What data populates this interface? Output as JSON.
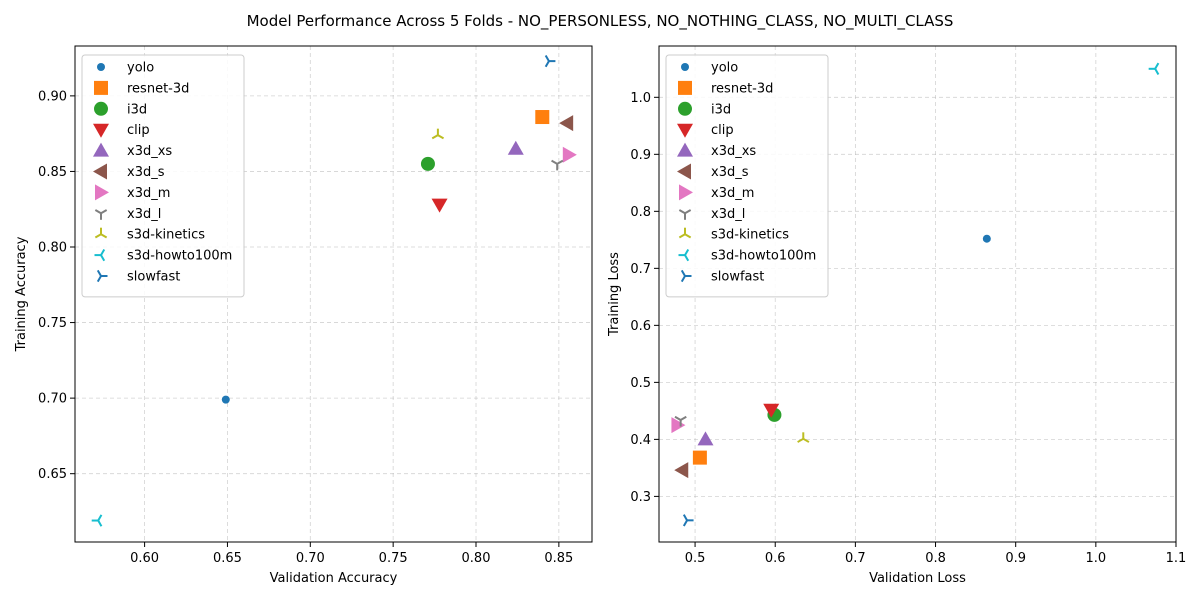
{
  "suptitle": "Model Performance Across 5 Folds - NO_PERSONLESS, NO_NOTHING_CLASS, NO_MULTI_CLASS",
  "chart_data": [
    {
      "type": "scatter",
      "title": "",
      "xlabel": "Validation Accuracy",
      "ylabel": "Training Accuracy",
      "xlim": [
        0.558,
        0.87
      ],
      "ylim": [
        0.6048,
        0.933
      ],
      "xticks": [
        0.6,
        0.65,
        0.7,
        0.75,
        0.8,
        0.85
      ],
      "xtick_labels": [
        "0.60",
        "0.65",
        "0.70",
        "0.75",
        "0.80",
        "0.85"
      ],
      "yticks": [
        0.65,
        0.7,
        0.75,
        0.8,
        0.85,
        0.9
      ],
      "ytick_labels": [
        "0.65",
        "0.70",
        "0.75",
        "0.80",
        "0.85",
        "0.90"
      ],
      "grid": true,
      "legend_position": "top-left",
      "series": [
        {
          "name": "yolo",
          "x": 0.649,
          "y": 0.699
        },
        {
          "name": "resnet-3d",
          "x": 0.84,
          "y": 0.886
        },
        {
          "name": "i3d",
          "x": 0.771,
          "y": 0.855
        },
        {
          "name": "clip",
          "x": 0.778,
          "y": 0.828
        },
        {
          "name": "x3d_xs",
          "x": 0.824,
          "y": 0.865
        },
        {
          "name": "x3d_s",
          "x": 0.855,
          "y": 0.882
        },
        {
          "name": "x3d_m",
          "x": 0.856,
          "y": 0.861
        },
        {
          "name": "x3d_l",
          "x": 0.849,
          "y": 0.855
        },
        {
          "name": "s3d-kinetics",
          "x": 0.777,
          "y": 0.874
        },
        {
          "name": "s3d-howto100m",
          "x": 0.572,
          "y": 0.619
        },
        {
          "name": "slowfast",
          "x": 0.844,
          "y": 0.923
        }
      ]
    },
    {
      "type": "scatter",
      "title": "",
      "xlabel": "Validation Loss",
      "ylabel": "Training Loss",
      "xlim": [
        0.455,
        1.1
      ],
      "ylim": [
        0.22,
        1.09
      ],
      "xticks": [
        0.5,
        0.6,
        0.7,
        0.8,
        0.9,
        1.0,
        1.1
      ],
      "xtick_labels": [
        "0.5",
        "0.6",
        "0.7",
        "0.8",
        "0.9",
        "1.0",
        "1.1"
      ],
      "yticks": [
        0.3,
        0.4,
        0.5,
        0.6,
        0.7,
        0.8,
        0.9,
        1.0
      ],
      "ytick_labels": [
        "0.3",
        "0.4",
        "0.5",
        "0.6",
        "0.7",
        "0.8",
        "0.9",
        "1.0"
      ],
      "grid": true,
      "legend_position": "top-left",
      "series": [
        {
          "name": "yolo",
          "x": 0.864,
          "y": 0.752
        },
        {
          "name": "resnet-3d",
          "x": 0.506,
          "y": 0.368
        },
        {
          "name": "i3d",
          "x": 0.599,
          "y": 0.443
        },
        {
          "name": "clip",
          "x": 0.595,
          "y": 0.452
        },
        {
          "name": "x3d_xs",
          "x": 0.513,
          "y": 0.4
        },
        {
          "name": "x3d_s",
          "x": 0.484,
          "y": 0.346
        },
        {
          "name": "x3d_m",
          "x": 0.478,
          "y": 0.425
        },
        {
          "name": "x3d_l",
          "x": 0.482,
          "y": 0.434
        },
        {
          "name": "s3d-kinetics",
          "x": 0.635,
          "y": 0.401
        },
        {
          "name": "s3d-howto100m",
          "x": 1.074,
          "y": 1.05
        },
        {
          "name": "slowfast",
          "x": 0.49,
          "y": 0.258
        }
      ]
    }
  ],
  "markers": {
    "yolo": {
      "shape": "circle-small",
      "color": "#1f77b4"
    },
    "resnet-3d": {
      "shape": "square",
      "color": "#ff7f0e"
    },
    "i3d": {
      "shape": "circle",
      "color": "#2ca02c"
    },
    "clip": {
      "shape": "triangle-down",
      "color": "#d62728"
    },
    "x3d_xs": {
      "shape": "triangle-up",
      "color": "#9467bd"
    },
    "x3d_s": {
      "shape": "triangle-left",
      "color": "#8c564b"
    },
    "x3d_m": {
      "shape": "triangle-right",
      "color": "#e377c2"
    },
    "x3d_l": {
      "shape": "tri-down",
      "color": "#7f7f7f"
    },
    "s3d-kinetics": {
      "shape": "tri-up",
      "color": "#bcbd22"
    },
    "s3d-howto100m": {
      "shape": "tri-left",
      "color": "#17becf"
    },
    "slowfast": {
      "shape": "tri-right",
      "color": "#1f77b4"
    }
  }
}
